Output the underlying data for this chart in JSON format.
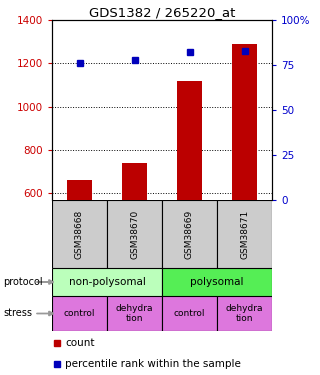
{
  "title": "GDS1382 / 265220_at",
  "samples": [
    "GSM38668",
    "GSM38670",
    "GSM38669",
    "GSM38671"
  ],
  "counts": [
    660,
    740,
    1120,
    1290
  ],
  "percentile_ranks": [
    76,
    78,
    82,
    83
  ],
  "ylim_left": [
    570,
    1400
  ],
  "ylim_right": [
    0,
    100
  ],
  "yticks_left": [
    600,
    800,
    1000,
    1200,
    1400
  ],
  "yticks_right": [
    0,
    25,
    50,
    75,
    100
  ],
  "ytick_labels_right": [
    "0",
    "25",
    "50",
    "75",
    "100%"
  ],
  "bar_color": "#bb0000",
  "dot_color": "#0000bb",
  "protocol_color_light": "#bbffbb",
  "protocol_color_medium": "#55ee55",
  "stress_color": "#dd77dd",
  "sample_bg_color": "#cccccc",
  "left_axis_color": "#cc0000",
  "right_axis_color": "#0000cc",
  "arrow_color": "#999999"
}
